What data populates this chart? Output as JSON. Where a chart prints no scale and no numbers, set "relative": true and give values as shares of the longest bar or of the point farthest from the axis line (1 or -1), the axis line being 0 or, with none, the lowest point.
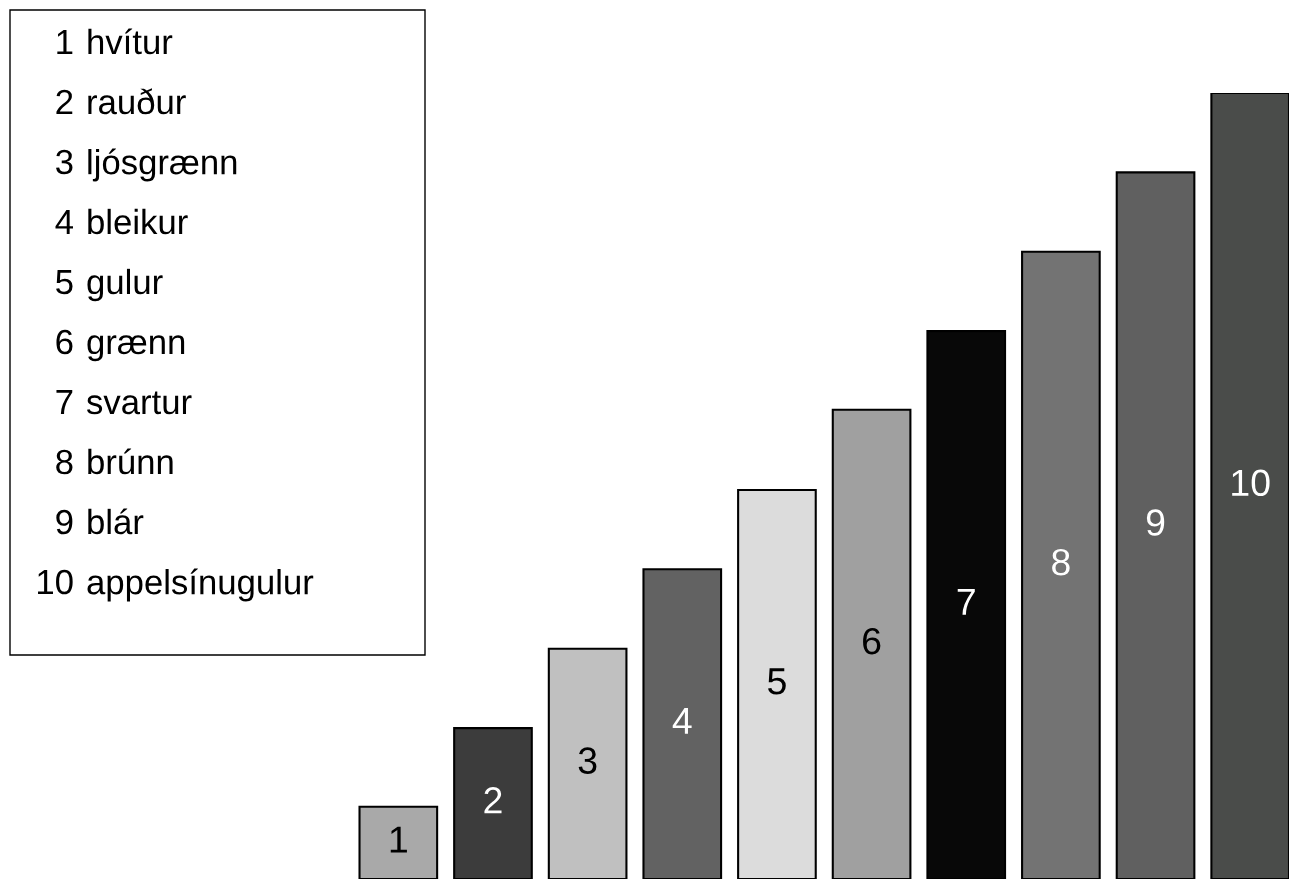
{
  "chart_data": {
    "type": "bar",
    "relative": true,
    "categories": [
      "1",
      "2",
      "3",
      "4",
      "5",
      "6",
      "7",
      "8",
      "9",
      "10"
    ],
    "values": [
      0.092,
      0.192,
      0.293,
      0.394,
      0.495,
      0.597,
      0.697,
      0.798,
      0.899,
      1.0
    ],
    "colors": [
      "#a9a9a9",
      "#3c3c3c",
      "#c0c0c0",
      "#626262",
      "#dcdcdc",
      "#a0a0a0",
      "#080808",
      "#737373",
      "#606060",
      "#4a4c4a"
    ],
    "annotations": [
      "1 hvítur",
      "2 rauður",
      "3 ljósgrænn",
      "4 bleikur",
      "5 gulur",
      "6 grænn",
      "7 svartur",
      "8 brúnn",
      "9 blár",
      "10 appelsínugulur"
    ]
  }
}
